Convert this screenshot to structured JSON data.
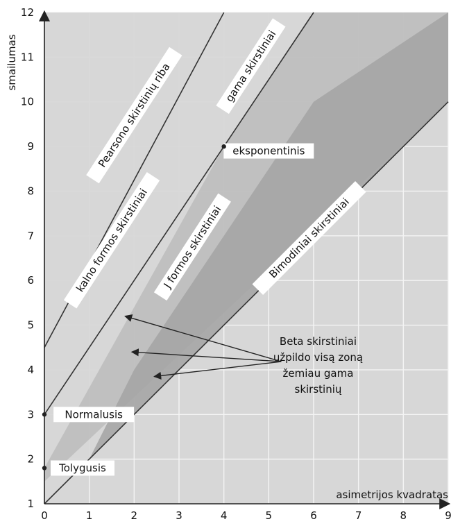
{
  "chart_data": {
    "type": "area",
    "title": "",
    "xlabel": "asimetrijos kvadratas",
    "ylabel": "smailumas",
    "xlim": [
      0,
      9
    ],
    "ylim": [
      1,
      12
    ],
    "x_ticks": [
      0,
      1,
      2,
      3,
      4,
      5,
      6,
      7,
      8,
      9
    ],
    "y_ticks": [
      1,
      2,
      3,
      4,
      5,
      6,
      7,
      8,
      9,
      10,
      11,
      12
    ],
    "grid": true,
    "colors": {
      "background": "#ffffff",
      "grid": "#f4f4f4",
      "region_light": "#d7d7d7",
      "region_mid": "#bcbcbc",
      "region_dark": "#a3a3a3",
      "lines": "#333333"
    },
    "regions": [
      {
        "name": "Pearsono skirstinių riba",
        "points": [
          [
            0,
            1
          ],
          [
            0,
            12
          ],
          [
            9,
            12
          ],
          [
            9,
            10
          ]
        ]
      },
      {
        "name": "J formos skirstiniai",
        "points": [
          [
            0,
            1.8
          ],
          [
            4,
            9
          ],
          [
            6,
            12
          ],
          [
            9,
            12
          ],
          [
            0,
            1.5
          ]
        ]
      },
      {
        "name": "Bimodiniai skirstiniai",
        "points": [
          [
            1,
            2
          ],
          [
            2,
            4
          ],
          [
            4,
            7
          ],
          [
            6,
            10
          ],
          [
            9,
            12
          ],
          [
            9,
            10
          ]
        ]
      }
    ],
    "lines": [
      {
        "label": "Pearsono skirstinių riba",
        "x1": 0,
        "y1": 4.5,
        "x2": 4,
        "y2": 12
      },
      {
        "label": "gama skirstiniai",
        "x1": 0,
        "y1": 3,
        "x2": 6,
        "y2": 12
      },
      {
        "label": "Bimodiniai skirstiniai",
        "x1": 0,
        "y1": 1,
        "x2": 9,
        "y2": 10
      }
    ],
    "points": [
      {
        "label": "Normalusis",
        "x": 0,
        "y": 3
      },
      {
        "label": "Tolygusis",
        "x": 0,
        "y": 1.8
      },
      {
        "label": "eksponentinis",
        "x": 4,
        "y": 9
      }
    ],
    "labels": [
      {
        "text": "Pearsono skirstinių riba",
        "x": 2,
        "y": 9.7
      },
      {
        "text": "gama skirstiniai",
        "x": 4.6,
        "y": 10.8
      },
      {
        "text": "kalno formos skirstiniai",
        "x": 1.5,
        "y": 6.9
      },
      {
        "text": "J formos skirstiniai",
        "x": 3.3,
        "y": 6.75
      },
      {
        "text": "Bimodiniai skirstiniai",
        "x": 5.9,
        "y": 6.95
      },
      {
        "text": "eksponentinis",
        "x": 5.0,
        "y": 8.9
      },
      {
        "text": "Normalusis",
        "x": 1.1,
        "y": 3.0
      },
      {
        "text": "Tolygusis",
        "x": 0.85,
        "y": 1.8
      }
    ],
    "note": {
      "lines": [
        "Beta skirstiniai",
        "užpildo visą zoną",
        "žemiau gama",
        "skirstinių"
      ],
      "x": 6.1,
      "y": 4.2,
      "arrows": [
        {
          "x": 1.8,
          "y": 5.2
        },
        {
          "x": 1.95,
          "y": 4.4
        },
        {
          "x": 2.45,
          "y": 3.85
        }
      ]
    }
  }
}
